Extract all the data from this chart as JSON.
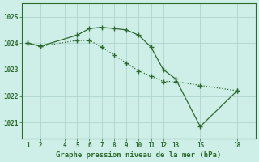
{
  "line1_x": [
    1,
    2,
    5,
    6,
    7,
    8,
    9,
    10,
    11,
    12,
    13,
    15,
    18
  ],
  "line1_y": [
    1024.0,
    1023.88,
    1024.3,
    1024.55,
    1024.6,
    1024.55,
    1024.5,
    1024.3,
    1023.85,
    1023.0,
    1022.65,
    1020.85,
    1022.2
  ],
  "line2_x": [
    1,
    2,
    5,
    6,
    7,
    8,
    9,
    10,
    11,
    12,
    13,
    15,
    18
  ],
  "line2_y": [
    1024.0,
    1023.88,
    1024.1,
    1024.1,
    1023.85,
    1023.55,
    1023.25,
    1022.95,
    1022.75,
    1022.55,
    1022.55,
    1022.4,
    1022.2
  ],
  "line_color": "#2d6a2d",
  "bg_color": "#ceeee8",
  "grid_color": "#aed4cc",
  "xlabel": "Graphe pression niveau de la mer (hPa)",
  "yticks": [
    1021,
    1022,
    1023,
    1024,
    1025
  ],
  "xticks": [
    1,
    2,
    4,
    5,
    6,
    7,
    8,
    9,
    10,
    11,
    12,
    13,
    15,
    18
  ],
  "xlim": [
    0.5,
    19.5
  ],
  "ylim": [
    1020.4,
    1025.5
  ]
}
